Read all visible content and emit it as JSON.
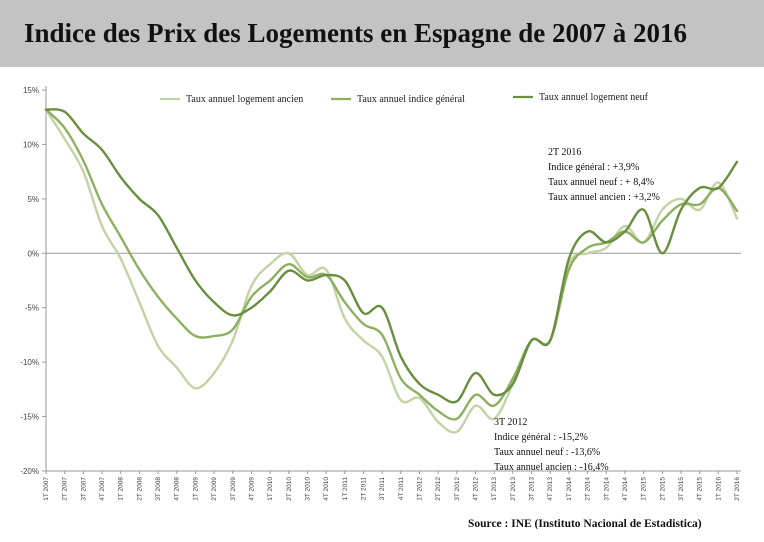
{
  "header": {
    "title": "Indice des Prix des Logements en Espagne de 2007 à 2016"
  },
  "source": "Source : INE (Instituto Nacional de Estadistica)",
  "colors": {
    "ancien": "#c3d3a4",
    "general": "#8db060",
    "neuf": "#698e3f",
    "axis": "#999999",
    "title_bg": "#c3c3c3"
  },
  "chart_data": {
    "type": "line",
    "title": "Indice des Prix des Logements en Espagne de 2007 à 2016",
    "xlabel": "",
    "ylabel": "",
    "ylim": [
      -20,
      15
    ],
    "yticks": [
      15,
      10,
      5,
      0,
      -5,
      -10,
      -15,
      -20
    ],
    "ytick_labels": [
      "15%",
      "10%",
      "5%",
      "0%",
      "-5%",
      "-10%",
      "-15%",
      "-20%"
    ],
    "legend_position": "top",
    "grid": false,
    "categories": [
      "1T 2007",
      "2T 2007",
      "3T 2007",
      "4T 2007",
      "1T 2008",
      "2T 2008",
      "3T 2008",
      "4T 2008",
      "1T 2009",
      "2T 2009",
      "3T 2009",
      "4T 2009",
      "1T 2010",
      "2T 2010",
      "3T 2010",
      "4T 2010",
      "1T 2011",
      "2T 2011",
      "3T 2011",
      "4T 2011",
      "1T 2012",
      "2T 2012",
      "3T 2012",
      "4T 2012",
      "1T 2013",
      "2T 2013",
      "3T 2013",
      "4T 2013",
      "1T 2014",
      "2T 2014",
      "3T 2014",
      "4T 2014",
      "1T 2015",
      "2T 2015",
      "3T 2015",
      "4T 2015",
      "1T 2016",
      "2T 2016"
    ],
    "series": [
      {
        "name": "Taux annuel logement ancien",
        "color": "#c3d3a4",
        "values": [
          13.2,
          10.5,
          7.5,
          2.5,
          -0.5,
          -4.5,
          -8.5,
          -10.5,
          -12.4,
          -11.0,
          -8.0,
          -3.0,
          -1.0,
          0.0,
          -2.0,
          -1.5,
          -6.0,
          -8.0,
          -9.5,
          -13.5,
          -13.3,
          -15.5,
          -16.4,
          -14.0,
          -15.2,
          -12.0,
          -8.0,
          -8.0,
          -1.0,
          0.0,
          0.5,
          2.5,
          1.0,
          4.0,
          5.0,
          4.0,
          6.5,
          3.2
        ]
      },
      {
        "name": "Taux annuel indice général",
        "color": "#8db060",
        "values": [
          13.2,
          11.5,
          8.5,
          4.5,
          1.5,
          -1.5,
          -4.0,
          -6.0,
          -7.6,
          -7.6,
          -7.0,
          -4.0,
          -2.5,
          -1.0,
          -2.2,
          -2.0,
          -4.5,
          -6.5,
          -7.5,
          -11.5,
          -13.0,
          -14.5,
          -15.2,
          -13.0,
          -14.0,
          -11.5,
          -8.0,
          -8.0,
          -1.5,
          0.5,
          1.0,
          2.0,
          1.0,
          3.0,
          4.5,
          4.5,
          6.0,
          3.9
        ]
      },
      {
        "name": "Taux annuel logement neuf",
        "color": "#698e3f",
        "values": [
          13.2,
          13.0,
          11.0,
          9.5,
          7.0,
          5.0,
          3.5,
          0.5,
          -2.5,
          -4.5,
          -5.7,
          -5.0,
          -3.5,
          -1.6,
          -2.5,
          -2.0,
          -2.5,
          -5.5,
          -5.0,
          -9.5,
          -12.0,
          -13.0,
          -13.6,
          -11.0,
          -13.0,
          -12.0,
          -8.0,
          -8.0,
          -0.5,
          2.0,
          1.0,
          2.0,
          4.0,
          0.0,
          4.0,
          6.0,
          6.0,
          8.4
        ]
      }
    ],
    "annotations": [
      {
        "lines": [
          "2T 2016",
          "Indice général : +3,9%",
          "Taux annuel  neuf : + 8,4%",
          "Taux annuel ancien : +3,2%"
        ]
      },
      {
        "lines": [
          "3T 2012",
          "Indice général : -15,2%",
          "Taux annuel neuf : -13,6%",
          "Taux annuel ancien : -16,4%"
        ]
      }
    ]
  }
}
